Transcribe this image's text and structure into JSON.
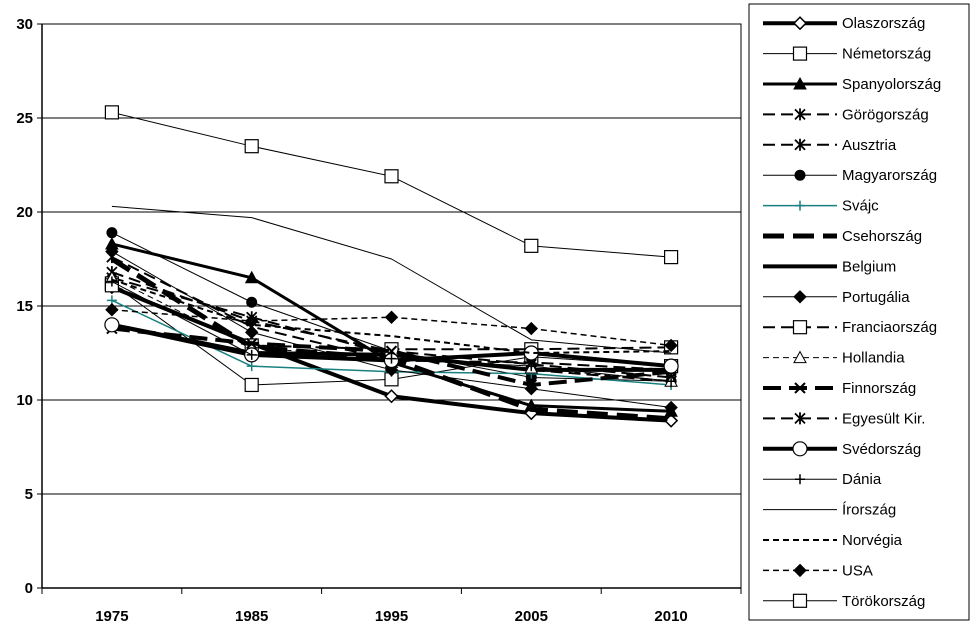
{
  "chart_data": {
    "type": "line",
    "title": "",
    "xlabel": "",
    "ylabel": "",
    "categories": [
      "1975",
      "1985",
      "1995",
      "2005",
      "2010"
    ],
    "ylim": [
      0,
      30
    ],
    "yticks": [
      "0",
      "5",
      "10",
      "15",
      "20",
      "25",
      "30"
    ],
    "grid": "horizontal",
    "legend_position": "right",
    "series": [
      {
        "name": "Olaszország",
        "values": [
          16.0,
          13.0,
          10.2,
          9.3,
          8.9
        ],
        "color": "#000000",
        "width": 4,
        "dash": "none",
        "marker": "diamond-open"
      },
      {
        "name": "Németország",
        "values": [
          16.2,
          10.8,
          11.1,
          12.3,
          11.8
        ],
        "color": "#000000",
        "width": 1,
        "dash": "none",
        "marker": "square-open"
      },
      {
        "name": "Spanyolország",
        "values": [
          18.3,
          16.5,
          12.0,
          9.7,
          9.4
        ],
        "color": "#000000",
        "width": 3,
        "dash": "none",
        "marker": "triangle"
      },
      {
        "name": "Görögország",
        "values": [
          16.8,
          14.2,
          12.6,
          11.9,
          11.2
        ],
        "color": "#000000",
        "width": 2,
        "dash": "long",
        "marker": "star"
      },
      {
        "name": "Ausztria",
        "values": [
          16.5,
          14.4,
          12.4,
          11.6,
          11.0
        ],
        "color": "#000000",
        "width": 2,
        "dash": "long",
        "marker": "star"
      },
      {
        "name": "Magyarország",
        "values": [
          18.9,
          15.2,
          12.6,
          11.2,
          11.0
        ],
        "color": "#000000",
        "width": 1,
        "dash": "none",
        "marker": "circle"
      },
      {
        "name": "Svájc",
        "values": [
          15.3,
          11.8,
          11.5,
          11.4,
          10.8
        ],
        "color": "#1a8080",
        "width": 1.5,
        "dash": "none",
        "marker": "plus"
      },
      {
        "name": "Csehország",
        "values": [
          17.5,
          12.8,
          12.2,
          9.5,
          9.0
        ],
        "color": "#000000",
        "width": 5,
        "dash": "long",
        "marker": "none"
      },
      {
        "name": "Belgium",
        "values": [
          14.0,
          12.5,
          12.4,
          11.6,
          11.6
        ],
        "color": "#000000",
        "width": 4,
        "dash": "none",
        "marker": "none"
      },
      {
        "name": "Portugália",
        "values": [
          17.9,
          13.6,
          11.6,
          10.6,
          9.6
        ],
        "color": "#000000",
        "width": 1,
        "dash": "none",
        "marker": "diamond"
      },
      {
        "name": "Franciaország",
        "values": [
          16.1,
          12.9,
          12.7,
          12.7,
          12.8
        ],
        "color": "#000000",
        "width": 2,
        "dash": "long",
        "marker": "square-open"
      },
      {
        "name": "Hollandia",
        "values": [
          16.5,
          12.8,
          12.2,
          11.7,
          11.0
        ],
        "color": "#000000",
        "width": 1,
        "dash": "dash",
        "marker": "triangle-open"
      },
      {
        "name": "Finnország",
        "values": [
          13.8,
          13.0,
          12.6,
          10.8,
          11.5
        ],
        "color": "#000000",
        "width": 4,
        "dash": "long",
        "marker": "x"
      },
      {
        "name": "Egyesült Kir.",
        "values": [
          17.6,
          13.9,
          12.1,
          12.0,
          11.6
        ],
        "color": "#000000",
        "width": 2,
        "dash": "long",
        "marker": "star"
      },
      {
        "name": "Svédország",
        "values": [
          14.0,
          12.4,
          12.1,
          12.5,
          11.8
        ],
        "color": "#000000",
        "width": 4,
        "dash": "none",
        "marker": "circle-open"
      },
      {
        "name": "Dánia",
        "values": [
          16.3,
          12.4,
          12.2,
          11.8,
          11.0
        ],
        "color": "#000000",
        "width": 1,
        "dash": "none",
        "marker": "plus"
      },
      {
        "name": "Írország",
        "values": [
          20.3,
          19.7,
          17.5,
          13.2,
          12.5
        ],
        "color": "#000000",
        "width": 1,
        "dash": "none",
        "marker": "none"
      },
      {
        "name": "Norvégia",
        "values": [
          16.4,
          14.0,
          13.4,
          12.5,
          12.6
        ],
        "color": "#000000",
        "width": 2,
        "dash": "dash",
        "marker": "none"
      },
      {
        "name": "USA",
        "values": [
          14.8,
          14.2,
          14.4,
          13.8,
          12.9
        ],
        "color": "#000000",
        "width": 1.5,
        "dash": "dash",
        "marker": "diamond"
      },
      {
        "name": "Törökország",
        "values": [
          25.3,
          23.5,
          21.9,
          18.2,
          17.6
        ],
        "color": "#000000",
        "width": 1,
        "dash": "none",
        "marker": "square-open"
      }
    ]
  }
}
